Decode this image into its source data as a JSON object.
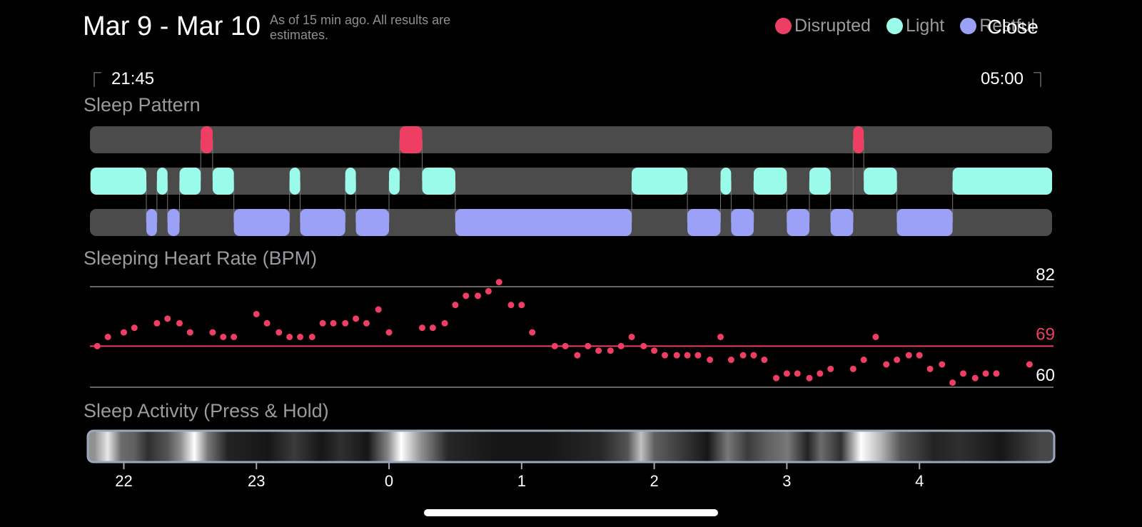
{
  "header": {
    "title": "Mar 9 - Mar 10",
    "subtitle": "As of 15 min ago. All results are estimates.",
    "close_label": "Close"
  },
  "legend": [
    {
      "label": "Disrupted",
      "color": "#ee3e63"
    },
    {
      "label": "Light",
      "color": "#9bfbea"
    },
    {
      "label": "Restful",
      "color": "#9aa1f6"
    }
  ],
  "range": {
    "start": "21:45",
    "end": "05:00"
  },
  "sections": {
    "pattern": "Sleep Pattern",
    "heart": "Sleeping Heart Rate (BPM)",
    "activity": "Sleep Activity (Press & Hold)"
  },
  "chart_data": [
    {
      "type": "timeline",
      "title": "Sleep Pattern",
      "x_unit": "hours after midnight (negative = before midnight)",
      "xlim": [
        -2.25,
        5.0
      ],
      "lanes": [
        "Disrupted",
        "Light",
        "Restful"
      ],
      "segments": [
        {
          "stage": "Light",
          "start": -2.25,
          "end": -1.83
        },
        {
          "stage": "Restful",
          "start": -1.83,
          "end": -1.75
        },
        {
          "stage": "Light",
          "start": -1.75,
          "end": -1.67
        },
        {
          "stage": "Restful",
          "start": -1.67,
          "end": -1.58
        },
        {
          "stage": "Light",
          "start": -1.58,
          "end": -1.42
        },
        {
          "stage": "Disrupted",
          "start": -1.42,
          "end": -1.33
        },
        {
          "stage": "Light",
          "start": -1.33,
          "end": -1.17
        },
        {
          "stage": "Restful",
          "start": -1.17,
          "end": -0.75
        },
        {
          "stage": "Light",
          "start": -0.75,
          "end": -0.67
        },
        {
          "stage": "Restful",
          "start": -0.67,
          "end": -0.33
        },
        {
          "stage": "Light",
          "start": -0.33,
          "end": -0.25
        },
        {
          "stage": "Restful",
          "start": -0.25,
          "end": 0.0
        },
        {
          "stage": "Light",
          "start": 0.0,
          "end": 0.08
        },
        {
          "stage": "Disrupted",
          "start": 0.08,
          "end": 0.25
        },
        {
          "stage": "Light",
          "start": 0.25,
          "end": 0.5
        },
        {
          "stage": "Restful",
          "start": 0.5,
          "end": 1.83
        },
        {
          "stage": "Light",
          "start": 1.83,
          "end": 2.25
        },
        {
          "stage": "Restful",
          "start": 2.25,
          "end": 2.5
        },
        {
          "stage": "Light",
          "start": 2.5,
          "end": 2.58
        },
        {
          "stage": "Restful",
          "start": 2.58,
          "end": 2.75
        },
        {
          "stage": "Light",
          "start": 2.75,
          "end": 3.0
        },
        {
          "stage": "Restful",
          "start": 3.0,
          "end": 3.17
        },
        {
          "stage": "Light",
          "start": 3.17,
          "end": 3.33
        },
        {
          "stage": "Restful",
          "start": 3.33,
          "end": 3.5
        },
        {
          "stage": "Disrupted",
          "start": 3.5,
          "end": 3.58
        },
        {
          "stage": "Light",
          "start": 3.58,
          "end": 3.83
        },
        {
          "stage": "Restful",
          "start": 3.83,
          "end": 4.25
        },
        {
          "stage": "Light",
          "start": 4.25,
          "end": 5.0
        }
      ]
    },
    {
      "type": "scatter",
      "title": "Sleeping Heart Rate (BPM)",
      "ylim": [
        60,
        82
      ],
      "reference_lines": [
        {
          "value": 82,
          "label": "82"
        },
        {
          "value": 69,
          "label": "69",
          "color": "#ee3e63"
        },
        {
          "value": 60,
          "label": "60"
        }
      ],
      "x": [
        -2.2,
        -2.12,
        -2.0,
        -1.92,
        -1.75,
        -1.67,
        -1.58,
        -1.5,
        -1.33,
        -1.25,
        -1.17,
        -1.0,
        -0.92,
        -0.83,
        -0.75,
        -0.67,
        -0.58,
        -0.5,
        -0.42,
        -0.33,
        -0.25,
        -0.17,
        -0.08,
        0.0,
        0.25,
        0.33,
        0.42,
        0.5,
        0.58,
        0.67,
        0.75,
        0.83,
        0.92,
        1.0,
        1.08,
        1.25,
        1.33,
        1.42,
        1.5,
        1.58,
        1.67,
        1.75,
        1.83,
        1.92,
        2.0,
        2.08,
        2.17,
        2.25,
        2.33,
        2.42,
        2.5,
        2.58,
        2.67,
        2.75,
        2.83,
        2.92,
        3.0,
        3.08,
        3.17,
        3.25,
        3.33,
        3.5,
        3.58,
        3.67,
        3.75,
        3.83,
        3.92,
        4.0,
        4.08,
        4.17,
        4.25,
        4.33,
        4.42,
        4.5,
        4.58,
        4.83
      ],
      "y": [
        69,
        71,
        72,
        73,
        74,
        75,
        74,
        72,
        72,
        71,
        71,
        76,
        74,
        72,
        71,
        71,
        71,
        74,
        74,
        74,
        75,
        74,
        77,
        72,
        73,
        73,
        74,
        78,
        80,
        80,
        81,
        83,
        78,
        78,
        72,
        69,
        69,
        67,
        69,
        68,
        68,
        69,
        71,
        69,
        68,
        67,
        67,
        67,
        67,
        66,
        71,
        66,
        67,
        67,
        66,
        62,
        63,
        63,
        62,
        63,
        64,
        64,
        66,
        71,
        65,
        66,
        67,
        67,
        64,
        65,
        61,
        63,
        62,
        63,
        63,
        65
      ]
    },
    {
      "type": "heatmap",
      "title": "Sleep Activity (Press & Hold)",
      "xticks": [
        "22",
        "23",
        "0",
        "1",
        "2",
        "3",
        "4"
      ],
      "xtick_values": [
        -2.0,
        -1.0,
        0.0,
        1.0,
        2.0,
        3.0,
        4.0
      ],
      "intensity_profile": [
        {
          "x": -2.2,
          "v": 0.55
        },
        {
          "x": -2.1,
          "v": 0.9
        },
        {
          "x": -2.0,
          "v": 0.4
        },
        {
          "x": -1.9,
          "v": 0.35
        },
        {
          "x": -1.8,
          "v": 0.15
        },
        {
          "x": -1.65,
          "v": 0.3
        },
        {
          "x": -1.55,
          "v": 0.55
        },
        {
          "x": -1.45,
          "v": 1.0
        },
        {
          "x": -1.35,
          "v": 0.45
        },
        {
          "x": -1.2,
          "v": 0.1
        },
        {
          "x": -0.9,
          "v": 0.05
        },
        {
          "x": -0.7,
          "v": 0.2
        },
        {
          "x": -0.5,
          "v": 0.05
        },
        {
          "x": -0.35,
          "v": 0.15
        },
        {
          "x": -0.15,
          "v": 0.05
        },
        {
          "x": 0.0,
          "v": 0.5
        },
        {
          "x": 0.1,
          "v": 1.0
        },
        {
          "x": 0.25,
          "v": 0.55
        },
        {
          "x": 0.45,
          "v": 0.12
        },
        {
          "x": 0.8,
          "v": 0.05
        },
        {
          "x": 1.2,
          "v": 0.05
        },
        {
          "x": 1.6,
          "v": 0.12
        },
        {
          "x": 1.8,
          "v": 0.3
        },
        {
          "x": 1.9,
          "v": 0.75
        },
        {
          "x": 2.0,
          "v": 0.35
        },
        {
          "x": 2.2,
          "v": 0.2
        },
        {
          "x": 2.4,
          "v": 0.05
        },
        {
          "x": 2.55,
          "v": 0.45
        },
        {
          "x": 2.7,
          "v": 0.2
        },
        {
          "x": 2.85,
          "v": 0.35
        },
        {
          "x": 3.0,
          "v": 0.45
        },
        {
          "x": 3.15,
          "v": 0.1
        },
        {
          "x": 3.25,
          "v": 0.4
        },
        {
          "x": 3.4,
          "v": 0.15
        },
        {
          "x": 3.55,
          "v": 1.0
        },
        {
          "x": 3.7,
          "v": 0.7
        },
        {
          "x": 3.85,
          "v": 0.3
        },
        {
          "x": 4.1,
          "v": 0.1
        },
        {
          "x": 4.3,
          "v": 0.15
        },
        {
          "x": 4.6,
          "v": 0.05
        },
        {
          "x": 4.9,
          "v": 0.25
        }
      ]
    }
  ]
}
